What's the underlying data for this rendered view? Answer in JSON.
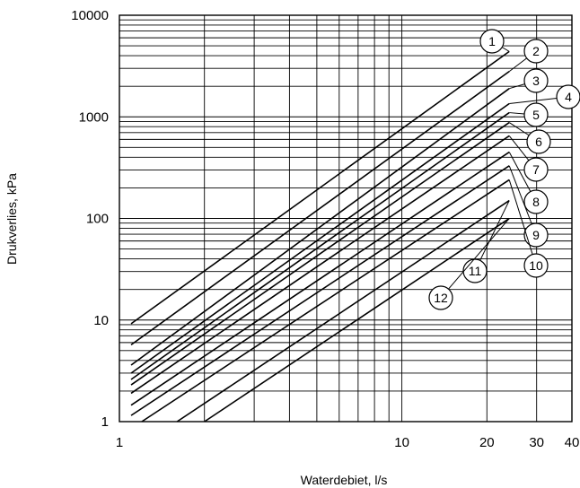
{
  "chart_data": {
    "type": "line",
    "title": "",
    "xlabel": "Waterdebiet, l/s",
    "ylabel": "Drukverlies, kPa",
    "x_scale": "log",
    "y_scale": "log",
    "xlim": [
      1,
      40
    ],
    "ylim": [
      1,
      10000
    ],
    "x_ticks": [
      1,
      10,
      20,
      30,
      40
    ],
    "x_tick_labels": [
      "1",
      "10",
      "20",
      "30",
      "40"
    ],
    "y_ticks": [
      1,
      10,
      100,
      1000,
      10000
    ],
    "y_tick_labels": [
      "1",
      "10",
      "100",
      "1000",
      "10000"
    ],
    "grid": true,
    "series": [
      {
        "name": "1",
        "x": [
          1.1,
          24
        ],
        "y": [
          9.2,
          4400
        ]
      },
      {
        "name": "2",
        "x": [
          1.1,
          24
        ],
        "y": [
          5.7,
          2800
        ]
      },
      {
        "name": "3",
        "x": [
          1.1,
          24
        ],
        "y": [
          3.6,
          1900
        ]
      },
      {
        "name": "4",
        "x": [
          1.1,
          24
        ],
        "y": [
          3.0,
          1350
        ]
      },
      {
        "name": "5",
        "x": [
          1.1,
          24
        ],
        "y": [
          2.6,
          1100
        ]
      },
      {
        "name": "6",
        "x": [
          1.1,
          24
        ],
        "y": [
          2.3,
          880
        ]
      },
      {
        "name": "7",
        "x": [
          1.1,
          24
        ],
        "y": [
          1.9,
          650
        ]
      },
      {
        "name": "8",
        "x": [
          1.1,
          24
        ],
        "y": [
          1.45,
          450
        ]
      },
      {
        "name": "9",
        "x": [
          1.1,
          24
        ],
        "y": [
          1.15,
          330
        ]
      },
      {
        "name": "10",
        "x": [
          1.2,
          24
        ],
        "y": [
          1.0,
          240
        ]
      },
      {
        "name": "11",
        "x": [
          1.6,
          24
        ],
        "y": [
          1.0,
          150
        ]
      },
      {
        "name": "12",
        "x": [
          2.0,
          24
        ],
        "y": [
          1.0,
          100
        ]
      }
    ],
    "annotations": [
      "1",
      "2",
      "3",
      "4",
      "5",
      "6",
      "7",
      "8",
      "9",
      "10",
      "11",
      "12"
    ]
  }
}
